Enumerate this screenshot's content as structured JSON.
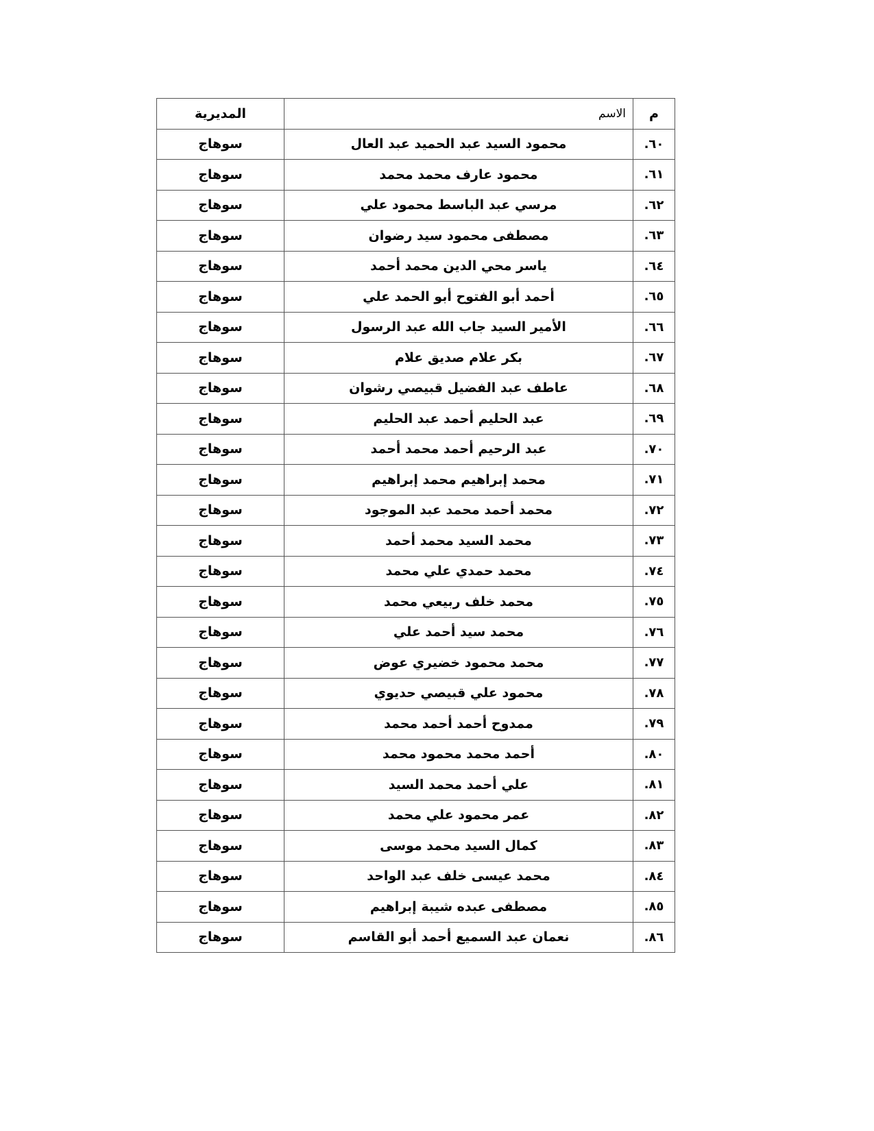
{
  "table": {
    "headers": {
      "num": "م",
      "name": "الاسم",
      "governorate": "المديرية"
    },
    "rows": [
      {
        "num": "٦٠.",
        "name": "محمود السيد عبد الحميد عبد العال",
        "governorate": "سوهاج"
      },
      {
        "num": "٦١.",
        "name": "محمود عارف محمد محمد",
        "governorate": "سوهاج"
      },
      {
        "num": "٦٢.",
        "name": "مرسي عبد الباسط محمود علي",
        "governorate": "سوهاج"
      },
      {
        "num": "٦٣.",
        "name": "مصطفى محمود سيد رضوان",
        "governorate": "سوهاج"
      },
      {
        "num": "٦٤.",
        "name": "ياسر محي الدين محمد أحمد",
        "governorate": "سوهاج"
      },
      {
        "num": "٦٥.",
        "name": "أحمد أبو الفتوح أبو الحمد علي",
        "governorate": "سوهاج"
      },
      {
        "num": "٦٦.",
        "name": "الأمير السيد جاب الله عبد الرسول",
        "governorate": "سوهاج"
      },
      {
        "num": "٦٧.",
        "name": "بكر علام صديق علام",
        "governorate": "سوهاج"
      },
      {
        "num": "٦٨.",
        "name": "عاطف عبد الفضيل قبيصي رشوان",
        "governorate": "سوهاج"
      },
      {
        "num": "٦٩.",
        "name": "عبد الحليم أحمد عبد الحليم",
        "governorate": "سوهاج"
      },
      {
        "num": "٧٠.",
        "name": "عبد الرحيم أحمد محمد أحمد",
        "governorate": "سوهاج"
      },
      {
        "num": "٧١.",
        "name": "محمد إبراهيم محمد إبراهيم",
        "governorate": "سوهاج"
      },
      {
        "num": "٧٢.",
        "name": "محمد أحمد محمد عبد الموجود",
        "governorate": "سوهاج"
      },
      {
        "num": "٧٣.",
        "name": "محمد السيد محمد أحمد",
        "governorate": "سوهاج"
      },
      {
        "num": "٧٤.",
        "name": "محمد حمدي علي محمد",
        "governorate": "سوهاج"
      },
      {
        "num": "٧٥.",
        "name": "محمد خلف ربيعي محمد",
        "governorate": "سوهاج"
      },
      {
        "num": "٧٦.",
        "name": "محمد سيد أحمد علي",
        "governorate": "سوهاج"
      },
      {
        "num": "٧٧.",
        "name": "محمد محمود خضيري عوض",
        "governorate": "سوهاج"
      },
      {
        "num": "٧٨.",
        "name": "محمود علي قبيصي حديوي",
        "governorate": "سوهاج"
      },
      {
        "num": "٧٩.",
        "name": "ممدوح أحمد أحمد محمد",
        "governorate": "سوهاج"
      },
      {
        "num": "٨٠.",
        "name": "أحمد محمد محمود محمد",
        "governorate": "سوهاج"
      },
      {
        "num": "٨١.",
        "name": "علي أحمد محمد السيد",
        "governorate": "سوهاج"
      },
      {
        "num": "٨٢.",
        "name": "عمر محمود علي محمد",
        "governorate": "سوهاج"
      },
      {
        "num": "٨٣.",
        "name": "كمال السيد محمد موسى",
        "governorate": "سوهاج"
      },
      {
        "num": "٨٤.",
        "name": "محمد عيسى خلف عبد الواحد",
        "governorate": "سوهاج"
      },
      {
        "num": "٨٥.",
        "name": "مصطفى عبده شيبة إبراهيم",
        "governorate": "سوهاج"
      },
      {
        "num": "٨٦.",
        "name": "نعمان عبد السميع أحمد أبو القاسم",
        "governorate": "سوهاج"
      }
    ]
  }
}
